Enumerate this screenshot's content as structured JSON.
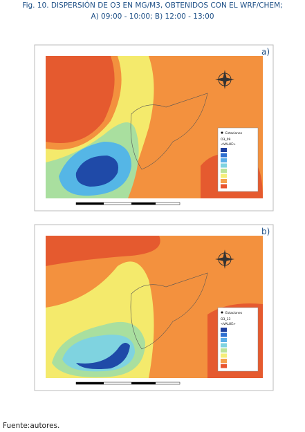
{
  "figure": {
    "title_lines": [
      "Fig. 10. DISPERSIÓN DE O3 EN MG/M3, OBTENIDOS CON EL WRF/CHEM;",
      "A) 09:00 - 10:00; B) 12:00 - 13:00"
    ],
    "panels": [
      {
        "label": "a)",
        "legend": {
          "station_label": "Estaciones",
          "layer": "O3_09",
          "value_header": "<VALUE>"
        }
      },
      {
        "label": "b)",
        "legend": {
          "station_label": "Estaciones",
          "layer": "O3_13",
          "value_header": "<VALUE>"
        }
      }
    ]
  },
  "source": "Fuente:autores."
}
